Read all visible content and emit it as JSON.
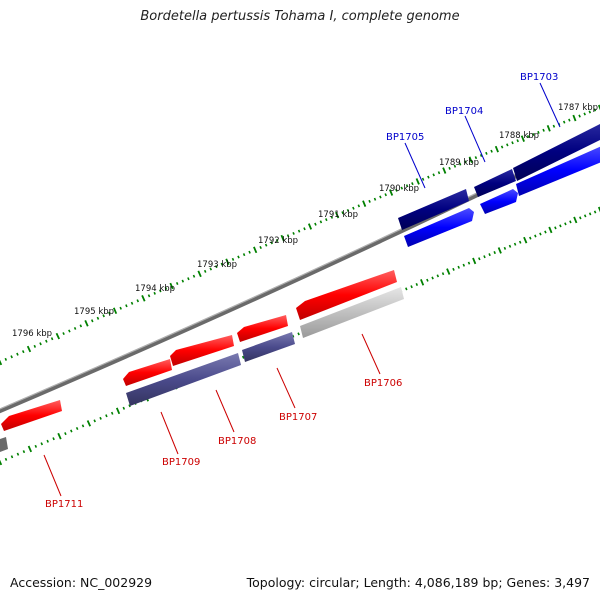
{
  "title": "Bordetella pertussis Tohama I, complete genome",
  "accession": "Accession: NC_002929",
  "summary": "Topology: circular; Length: 4,086,189 bp; Genes: 3,497",
  "scale_labels": [
    "1787 kbp",
    "1788 kbp",
    "1789 kbp",
    "1790 kbp",
    "1791 kbp",
    "1792 kbp",
    "1793 kbp",
    "1794 kbp",
    "1795 kbp",
    "1796 kbp"
  ],
  "genes": [
    {
      "name": "BP1703",
      "color": "#0000cc"
    },
    {
      "name": "BP1704",
      "color": "#0000cc"
    },
    {
      "name": "BP1705",
      "color": "#0000cc"
    },
    {
      "name": "BP1706",
      "color": "#cc0000"
    },
    {
      "name": "BP1707",
      "color": "#cc0000"
    },
    {
      "name": "BP1708",
      "color": "#cc0000"
    },
    {
      "name": "BP1709",
      "color": "#cc0000"
    },
    {
      "name": "BP1711",
      "color": "#cc0000"
    }
  ],
  "colors": {
    "backbone": "#808080",
    "tick": "#008000",
    "forward_cds": "#0000ff",
    "forward_gene": "#000080",
    "reverse_cds": "#ff0000",
    "reverse_gene": "#4b4b8c",
    "other": "#c0c0c0"
  }
}
